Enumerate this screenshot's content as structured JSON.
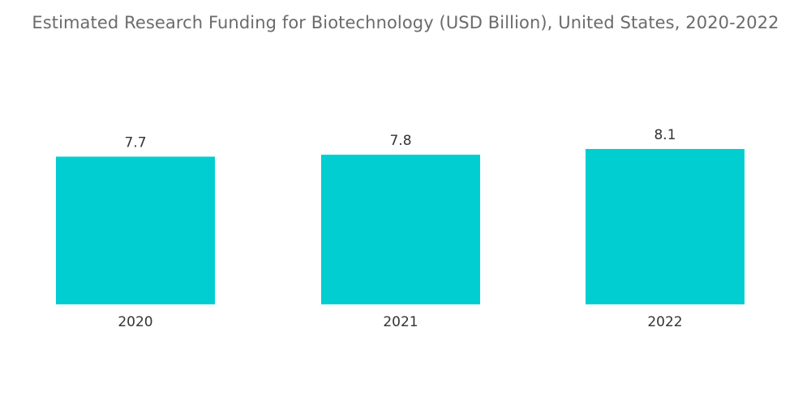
{
  "chart_data": {
    "type": "bar",
    "title": "Estimated Research Funding for Biotechnology (USD Billion), United States, 2020-2022",
    "categories": [
      "2020",
      "2021",
      "2022"
    ],
    "values": [
      7.7,
      7.8,
      8.1
    ],
    "value_labels": [
      "7.7",
      "7.8",
      "8.1"
    ],
    "xlabel": "",
    "ylabel": "",
    "ylim": [
      0,
      8.1
    ],
    "grid": false,
    "legend": "none",
    "bar_color": "#00CED1"
  }
}
